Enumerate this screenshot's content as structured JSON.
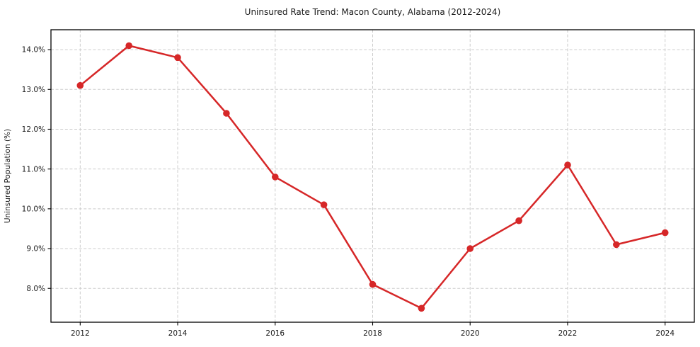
{
  "page": {
    "background": "#ffffff"
  },
  "chart_data": {
    "type": "line",
    "title": "Uninsured Rate Trend: Macon County, Alabama (2012-2024)",
    "xlabel": "",
    "ylabel": "Uninsured Population (%)",
    "series": [
      {
        "name": "Uninsured rate",
        "x": [
          2012,
          2013,
          2014,
          2015,
          2016,
          2017,
          2018,
          2019,
          2020,
          2021,
          2022,
          2023,
          2024
        ],
        "values": [
          13.1,
          14.1,
          13.8,
          12.4,
          10.8,
          10.1,
          8.1,
          7.5,
          9.0,
          9.7,
          11.1,
          9.1,
          9.4
        ]
      }
    ],
    "xlim": [
      2011.4,
      2024.6
    ],
    "ylim": [
      7.15,
      14.5
    ],
    "xticks": [
      2012,
      2014,
      2016,
      2018,
      2020,
      2022,
      2024
    ],
    "xtick_labels": [
      "2012",
      "2014",
      "2016",
      "2018",
      "2020",
      "2022",
      "2024"
    ],
    "yticks": [
      8,
      9,
      10,
      11,
      12,
      13,
      14
    ],
    "ytick_labels": [
      "8.0%",
      "9.0%",
      "10.0%",
      "11.0%",
      "12.0%",
      "13.0%",
      "14.0%"
    ],
    "grid": true,
    "legend": "none",
    "marker": "circle",
    "colors": {
      "line": "#d62728",
      "marker": "#d62728",
      "grid": "#cccccc",
      "axis": "#000000",
      "text": "#1a1a1a"
    }
  }
}
